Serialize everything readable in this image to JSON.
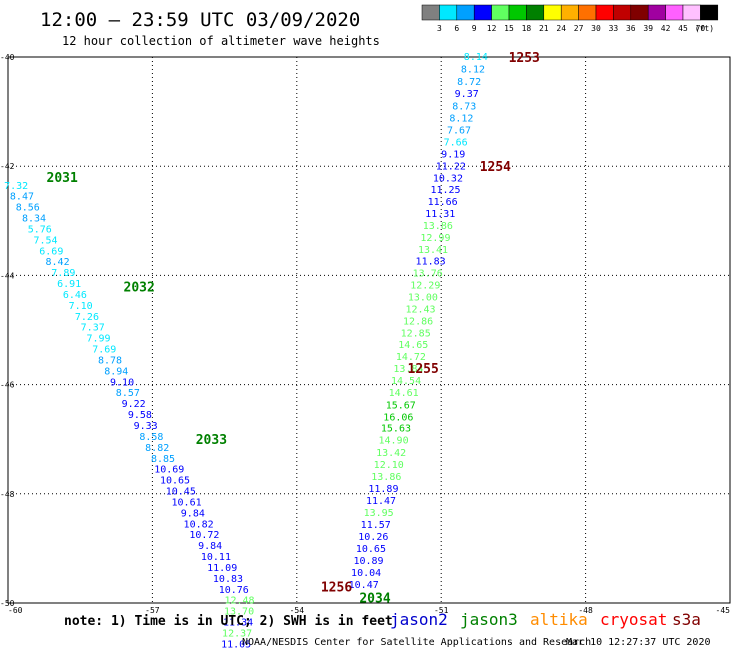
{
  "header": {
    "title": "12:00 — 23:59 UTC 03/09/2020",
    "subtitle": "12 hour collection of altimeter wave heights"
  },
  "colorbar": {
    "labels": [
      "3",
      "6",
      "9",
      "12",
      "15",
      "18",
      "21",
      "24",
      "27",
      "30",
      "33",
      "36",
      "39",
      "42",
      "45",
      "70"
    ],
    "unit": "(ft)",
    "colors": [
      "#808080",
      "#00e8ff",
      "#00a0ff",
      "#0000ff",
      "#60ff60",
      "#00c800",
      "#008000",
      "#ffff00",
      "#ffb000",
      "#ff7000",
      "#ff0000",
      "#c00000",
      "#800000",
      "#a000a0",
      "#ff60ff",
      "#ffc0ff",
      "#000000"
    ]
  },
  "axes": {
    "lat_labels": [
      "-40",
      "-42",
      "-44",
      "-46",
      "-48",
      "-50"
    ],
    "lon_labels": [
      "-60",
      "-57",
      "-54",
      "-51",
      "-48",
      "-45"
    ]
  },
  "footer": {
    "note": "note: 1) Time is in UTC; 2) SWH is in feet",
    "credit": "NOAA/NESDIS Center for Satellite Applications and Research",
    "timestamp": "Mar 10 12:27:37 UTC 2020",
    "satellites": [
      {
        "name": "jason2",
        "color": "#0000cc"
      },
      {
        "name": "jason3",
        "color": "#008000"
      },
      {
        "name": "altika",
        "color": "#ff8c00"
      },
      {
        "name": "cryosat",
        "color": "#ff0000"
      },
      {
        "name": "s3a",
        "color": "#800000"
      }
    ]
  },
  "track_labels": [
    {
      "text": "1253",
      "lon": -49.6,
      "lat": -40.0,
      "color": "#800000"
    },
    {
      "text": "1254",
      "lon": -50.2,
      "lat": -42.0,
      "color": "#800000"
    },
    {
      "text": "1255",
      "lon": -51.7,
      "lat": -45.7,
      "color": "#800000"
    },
    {
      "text": "1256",
      "lon": -53.5,
      "lat": -49.7,
      "color": "#800000"
    },
    {
      "text": "2031",
      "lon": -59.2,
      "lat": -42.2,
      "color": "#008000"
    },
    {
      "text": "2032",
      "lon": -57.6,
      "lat": -44.2,
      "color": "#008000"
    },
    {
      "text": "2033",
      "lon": -56.1,
      "lat": -47.0,
      "color": "#008000"
    },
    {
      "text": "2034",
      "lon": -52.7,
      "lat": -49.9,
      "color": "#008000"
    }
  ],
  "wave_heights": [
    {
      "v": "8.14",
      "lon": -50.28,
      "lat": -39.98,
      "c": "#00e8ff"
    },
    {
      "v": "8.12",
      "lon": -50.34,
      "lat": -40.21,
      "c": "#00a0ff"
    },
    {
      "v": "8.72",
      "lon": -50.42,
      "lat": -40.44,
      "c": "#00a0ff"
    },
    {
      "v": "9.37",
      "lon": -50.47,
      "lat": -40.66,
      "c": "#0000ff"
    },
    {
      "v": "8.73",
      "lon": -50.52,
      "lat": -40.89,
      "c": "#00a0ff"
    },
    {
      "v": "8.12",
      "lon": -50.58,
      "lat": -41.11,
      "c": "#00a0ff"
    },
    {
      "v": "7.67",
      "lon": -50.63,
      "lat": -41.33,
      "c": "#00a0ff"
    },
    {
      "v": "7.66",
      "lon": -50.7,
      "lat": -41.55,
      "c": "#00e8ff"
    },
    {
      "v": "9.19",
      "lon": -50.75,
      "lat": -41.77,
      "c": "#0000ff"
    },
    {
      "v": "11.22",
      "lon": -50.8,
      "lat": -41.99,
      "c": "#0000ff"
    },
    {
      "v": "10.32",
      "lon": -50.86,
      "lat": -42.21,
      "c": "#0000ff"
    },
    {
      "v": "11.25",
      "lon": -50.91,
      "lat": -42.42,
      "c": "#0000ff"
    },
    {
      "v": "11.66",
      "lon": -50.97,
      "lat": -42.64,
      "c": "#0000ff"
    },
    {
      "v": "11.31",
      "lon": -51.02,
      "lat": -42.86,
      "c": "#0000ff"
    },
    {
      "v": "13.86",
      "lon": -51.07,
      "lat": -43.08,
      "c": "#60ff60"
    },
    {
      "v": "12.99",
      "lon": -51.12,
      "lat": -43.3,
      "c": "#60ff60"
    },
    {
      "v": "13.41",
      "lon": -51.17,
      "lat": -43.52,
      "c": "#60ff60"
    },
    {
      "v": "11.83",
      "lon": -51.22,
      "lat": -43.73,
      "c": "#0000ff"
    },
    {
      "v": "13.76",
      "lon": -51.28,
      "lat": -43.95,
      "c": "#60ff60"
    },
    {
      "v": "12.29",
      "lon": -51.33,
      "lat": -44.17,
      "c": "#60ff60"
    },
    {
      "v": "13.00",
      "lon": -51.38,
      "lat": -44.39,
      "c": "#60ff60"
    },
    {
      "v": "12.43",
      "lon": -51.43,
      "lat": -44.61,
      "c": "#60ff60"
    },
    {
      "v": "12.86",
      "lon": -51.48,
      "lat": -44.83,
      "c": "#60ff60"
    },
    {
      "v": "12.85",
      "lon": -51.53,
      "lat": -45.05,
      "c": "#60ff60"
    },
    {
      "v": "14.65",
      "lon": -51.58,
      "lat": -45.26,
      "c": "#60ff60"
    },
    {
      "v": "14.72",
      "lon": -51.63,
      "lat": -45.48,
      "c": "#60ff60"
    },
    {
      "v": "13.84",
      "lon": -51.68,
      "lat": -45.7,
      "c": "#60ff60"
    },
    {
      "v": "14.54",
      "lon": -51.73,
      "lat": -45.92,
      "c": "#60ff60"
    },
    {
      "v": "14.61",
      "lon": -51.78,
      "lat": -46.14,
      "c": "#60ff60"
    },
    {
      "v": "15.67",
      "lon": -51.84,
      "lat": -46.36,
      "c": "#00c800"
    },
    {
      "v": "16.06",
      "lon": -51.89,
      "lat": -46.58,
      "c": "#00c800"
    },
    {
      "v": "15.63",
      "lon": -51.94,
      "lat": -46.79,
      "c": "#00c800"
    },
    {
      "v": "14.90",
      "lon": -51.99,
      "lat": -47.01,
      "c": "#60ff60"
    },
    {
      "v": "13.42",
      "lon": -52.04,
      "lat": -47.23,
      "c": "#60ff60"
    },
    {
      "v": "12.10",
      "lon": -52.09,
      "lat": -47.45,
      "c": "#60ff60"
    },
    {
      "v": "13.86",
      "lon": -52.14,
      "lat": -47.67,
      "c": "#60ff60"
    },
    {
      "v": "11.89",
      "lon": -52.2,
      "lat": -47.89,
      "c": "#0000ff"
    },
    {
      "v": "11.47",
      "lon": -52.25,
      "lat": -48.11,
      "c": "#0000ff"
    },
    {
      "v": "13.95",
      "lon": -52.3,
      "lat": -48.33,
      "c": "#60ff60"
    },
    {
      "v": "11.57",
      "lon": -52.36,
      "lat": -48.55,
      "c": "#0000ff"
    },
    {
      "v": "10.26",
      "lon": -52.41,
      "lat": -48.77,
      "c": "#0000ff"
    },
    {
      "v": "10.65",
      "lon": -52.46,
      "lat": -48.99,
      "c": "#0000ff"
    },
    {
      "v": "10.89",
      "lon": -52.51,
      "lat": -49.21,
      "c": "#0000ff"
    },
    {
      "v": "10.04",
      "lon": -52.56,
      "lat": -49.43,
      "c": "#0000ff"
    },
    {
      "v": "10.47",
      "lon": -52.61,
      "lat": -49.65,
      "c": "#0000ff"
    },
    {
      "v": "7.32",
      "lon": -59.83,
      "lat": -42.34,
      "c": "#00e8ff"
    },
    {
      "v": "8.47",
      "lon": -59.71,
      "lat": -42.54,
      "c": "#00a0ff"
    },
    {
      "v": "8.56",
      "lon": -59.59,
      "lat": -42.74,
      "c": "#00a0ff"
    },
    {
      "v": "8.34",
      "lon": -59.46,
      "lat": -42.94,
      "c": "#00a0ff"
    },
    {
      "v": "5.76",
      "lon": -59.34,
      "lat": -43.14,
      "c": "#00e8ff"
    },
    {
      "v": "7.54",
      "lon": -59.22,
      "lat": -43.34,
      "c": "#00e8ff"
    },
    {
      "v": "6.69",
      "lon": -59.1,
      "lat": -43.54,
      "c": "#00e8ff"
    },
    {
      "v": "8.42",
      "lon": -58.97,
      "lat": -43.74,
      "c": "#00a0ff"
    },
    {
      "v": "7.89",
      "lon": -58.85,
      "lat": -43.94,
      "c": "#00e8ff"
    },
    {
      "v": "6.91",
      "lon": -58.73,
      "lat": -44.14,
      "c": "#00e8ff"
    },
    {
      "v": "6.46",
      "lon": -58.61,
      "lat": -44.34,
      "c": "#00e8ff"
    },
    {
      "v": "7.10",
      "lon": -58.49,
      "lat": -44.54,
      "c": "#00e8ff"
    },
    {
      "v": "7.26",
      "lon": -58.36,
      "lat": -44.74,
      "c": "#00e8ff"
    },
    {
      "v": "7.37",
      "lon": -58.24,
      "lat": -44.94,
      "c": "#00e8ff"
    },
    {
      "v": "7.99",
      "lon": -58.12,
      "lat": -45.14,
      "c": "#00e8ff"
    },
    {
      "v": "7.69",
      "lon": -58.0,
      "lat": -45.34,
      "c": "#00e8ff"
    },
    {
      "v": "8.78",
      "lon": -57.88,
      "lat": -45.54,
      "c": "#00a0ff"
    },
    {
      "v": "8.94",
      "lon": -57.75,
      "lat": -45.74,
      "c": "#00a0ff"
    },
    {
      "v": "9.10",
      "lon": -57.63,
      "lat": -45.94,
      "c": "#0000ff"
    },
    {
      "v": "8.57",
      "lon": -57.51,
      "lat": -46.14,
      "c": "#00a0ff"
    },
    {
      "v": "9.22",
      "lon": -57.39,
      "lat": -46.34,
      "c": "#0000ff"
    },
    {
      "v": "9.58",
      "lon": -57.26,
      "lat": -46.54,
      "c": "#0000ff"
    },
    {
      "v": "9.33",
      "lon": -57.14,
      "lat": -46.74,
      "c": "#0000ff"
    },
    {
      "v": "8.58",
      "lon": -57.02,
      "lat": -46.94,
      "c": "#00a0ff"
    },
    {
      "v": "8.82",
      "lon": -56.9,
      "lat": -47.14,
      "c": "#00a0ff"
    },
    {
      "v": "8.85",
      "lon": -56.78,
      "lat": -47.34,
      "c": "#00a0ff"
    },
    {
      "v": "10.69",
      "lon": -56.65,
      "lat": -47.54,
      "c": "#0000ff"
    },
    {
      "v": "10.65",
      "lon": -56.53,
      "lat": -47.74,
      "c": "#0000ff"
    },
    {
      "v": "10.45",
      "lon": -56.41,
      "lat": -47.94,
      "c": "#0000ff"
    },
    {
      "v": "10.61",
      "lon": -56.29,
      "lat": -48.14,
      "c": "#0000ff"
    },
    {
      "v": "9.84",
      "lon": -56.16,
      "lat": -48.34,
      "c": "#0000ff"
    },
    {
      "v": "10.82",
      "lon": -56.04,
      "lat": -48.54,
      "c": "#0000ff"
    },
    {
      "v": "10.72",
      "lon": -55.92,
      "lat": -48.74,
      "c": "#0000ff"
    },
    {
      "v": "9.84",
      "lon": -55.8,
      "lat": -48.94,
      "c": "#0000ff"
    },
    {
      "v": "10.11",
      "lon": -55.68,
      "lat": -49.14,
      "c": "#0000ff"
    },
    {
      "v": "11.09",
      "lon": -55.55,
      "lat": -49.34,
      "c": "#0000ff"
    },
    {
      "v": "10.83",
      "lon": -55.43,
      "lat": -49.54,
      "c": "#0000ff"
    },
    {
      "v": "10.76",
      "lon": -55.31,
      "lat": -49.74,
      "c": "#0000ff"
    },
    {
      "v": "12.48",
      "lon": -55.19,
      "lat": -49.94,
      "c": "#60ff60"
    },
    {
      "v": "13.70",
      "lon": -55.2,
      "lat": -50.14,
      "c": "#60ff60"
    },
    {
      "v": "11.34",
      "lon": -55.22,
      "lat": -50.34,
      "c": "#0000ff"
    },
    {
      "v": "12.37",
      "lon": -55.24,
      "lat": -50.54,
      "c": "#60ff60"
    },
    {
      "v": "11.05",
      "lon": -55.26,
      "lat": -50.74,
      "c": "#0000ff"
    }
  ]
}
